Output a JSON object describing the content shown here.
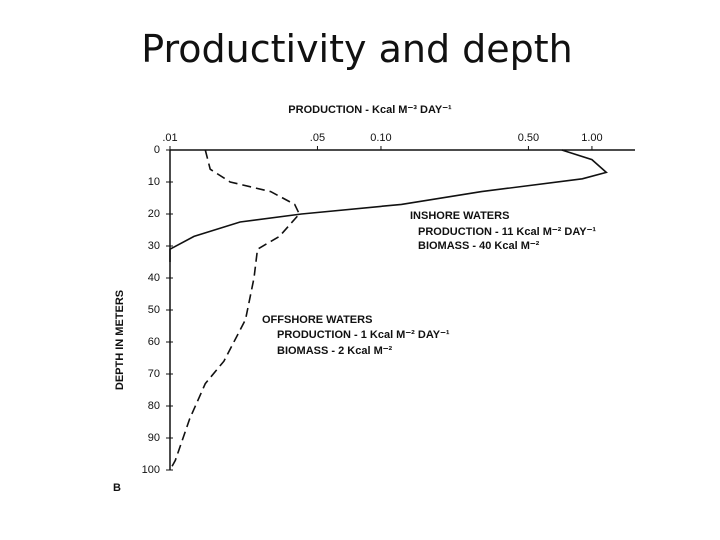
{
  "chart_data": {
    "type": "line",
    "title": "Productivity and depth",
    "xlabel": "PRODUCTION - Kcal M⁻³ DAY⁻¹",
    "ylabel": "DEPTH IN METERS",
    "xscale": "log",
    "xaxis_position": "top",
    "y_inverted": true,
    "xlim": [
      0.01,
      1.6
    ],
    "ylim": [
      0,
      100
    ],
    "xticks": [
      {
        "value": 0.01,
        "label": ".01"
      },
      {
        "value": 0.05,
        "label": ".05"
      },
      {
        "value": 0.1,
        "label": "0.10"
      },
      {
        "value": 0.5,
        "label": "0.50"
      },
      {
        "value": 1,
        "label": "1.00"
      }
    ],
    "yticks": [
      0,
      10,
      20,
      30,
      40,
      50,
      60,
      70,
      80,
      90,
      100
    ],
    "series": [
      {
        "name": "INSHORE WATERS",
        "color": "#111111",
        "dash": false,
        "x": [
          0.72,
          1.0,
          1.17,
          0.9,
          0.3,
          0.125,
          0.042,
          0.0215,
          0.013,
          0.01,
          0.01
        ],
        "values": [
          0,
          3,
          7,
          9,
          13,
          17,
          20,
          22.5,
          27,
          31,
          35
        ]
      },
      {
        "name": "OFFSHORE WATERS",
        "color": "#111111",
        "dash": true,
        "x": [
          0.0147,
          0.0155,
          0.0193,
          0.03,
          0.039,
          0.041,
          0.033,
          0.026,
          0.025,
          0.0228,
          0.018,
          0.0147,
          0.0124,
          0.0106,
          0.01
        ],
        "values": [
          0,
          6,
          10,
          13,
          17,
          20,
          27,
          31,
          40,
          53,
          66,
          73,
          84,
          97,
          100
        ]
      }
    ],
    "annotations": [
      {
        "text": "PRODUCTION - 11 Kcal M⁻² DAY⁻¹",
        "series": 0
      },
      {
        "text": "BIOMASS - 40 Kcal M⁻²",
        "series": 0
      },
      {
        "text": "PRODUCTION - 1 Kcal M⁻² DAY⁻¹",
        "series": 1
      },
      {
        "text": "BIOMASS - 2 Kcal M⁻²",
        "series": 1
      },
      {
        "text": "B"
      }
    ]
  }
}
